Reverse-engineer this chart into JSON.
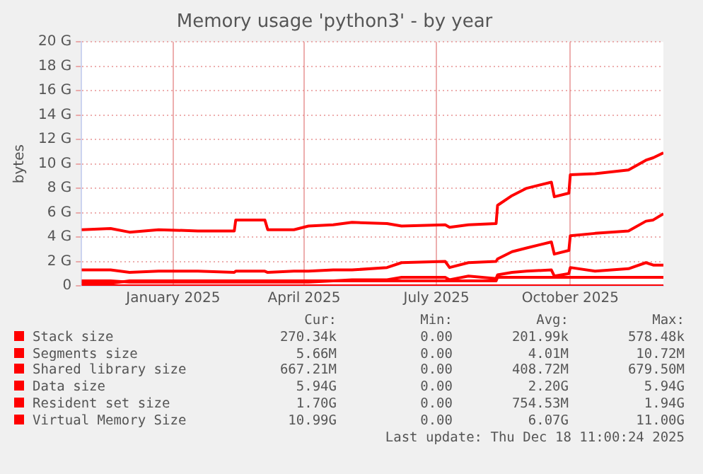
{
  "chart_data": {
    "type": "line",
    "title": "Memory usage 'python3' - by year",
    "ylabel": "bytes",
    "x": [
      "2024-11-13",
      "2024-12-03",
      "2024-12-16",
      "2025-01-05",
      "2025-02-01",
      "2025-02-26",
      "2025-02-27",
      "2025-03-19",
      "2025-03-21",
      "2025-04-08",
      "2025-04-18",
      "2025-05-05",
      "2025-05-18",
      "2025-06-11",
      "2025-06-21",
      "2025-07-21",
      "2025-07-24",
      "2025-08-06",
      "2025-08-25",
      "2025-08-26",
      "2025-09-05",
      "2025-09-15",
      "2025-10-02",
      "2025-10-04",
      "2025-10-14",
      "2025-10-15",
      "2025-11-01",
      "2025-11-24",
      "2025-12-06",
      "2025-12-11",
      "2025-12-18"
    ],
    "xlim": [
      "2024-11-13",
      "2025-12-18"
    ],
    "xticks": [
      {
        "value": "2025-01-15",
        "label": "January 2025"
      },
      {
        "value": "2025-04-15",
        "label": "April 2025"
      },
      {
        "value": "2025-07-15",
        "label": "July 2025"
      },
      {
        "value": "2025-10-15",
        "label": "October 2025"
      }
    ],
    "ylim": [
      0,
      20
    ],
    "yticks": [
      {
        "value": 0,
        "label": "0"
      },
      {
        "value": 2,
        "label": "2 G"
      },
      {
        "value": 4,
        "label": "4 G"
      },
      {
        "value": 6,
        "label": "6 G"
      },
      {
        "value": 8,
        "label": "8 G"
      },
      {
        "value": 10,
        "label": "10 G"
      },
      {
        "value": 12,
        "label": "12 G"
      },
      {
        "value": 14,
        "label": "14 G"
      },
      {
        "value": 16,
        "label": "16 G"
      },
      {
        "value": 18,
        "label": "18 G"
      },
      {
        "value": 20,
        "label": "20 G"
      }
    ],
    "grid": true,
    "legend": "bottom",
    "marker": "none",
    "line_style": "solid",
    "series": [
      {
        "name": "Stack size",
        "color": "#ff0000",
        "values": [
          0,
          0,
          0,
          0,
          0,
          0,
          0,
          0,
          0,
          0,
          0,
          0,
          0,
          0,
          0,
          0,
          0,
          0,
          0,
          0,
          0,
          0,
          0,
          0,
          0,
          0,
          0,
          0,
          0,
          0,
          0
        ]
      },
      {
        "name": "Segments size",
        "color": "#ff0000",
        "values": [
          null,
          null,
          null,
          null,
          null,
          null,
          null,
          null,
          null,
          null,
          null,
          null,
          null,
          null,
          null,
          null,
          null,
          null,
          null,
          null,
          null,
          null,
          null,
          null,
          null,
          null,
          null,
          null,
          null,
          null,
          null
        ]
      },
      {
        "name": "Shared library size",
        "color": "#ff0000",
        "values": [
          0.2,
          0.2,
          0.4,
          0.4,
          0.4,
          0.4,
          0.4,
          0.4,
          0.4,
          0.4,
          0.4,
          0.4,
          0.4,
          0.4,
          0.4,
          0.4,
          0.4,
          0.4,
          0.4,
          0.7,
          0.7,
          0.7,
          0.7,
          0.7,
          0.7,
          0.7,
          0.7,
          0.7,
          0.7,
          0.7,
          0.7
        ]
      },
      {
        "name": "Data size",
        "color": "#ff0000",
        "values": [
          1.3,
          1.3,
          1.1,
          1.2,
          1.2,
          1.1,
          1.2,
          1.2,
          1.1,
          1.2,
          1.2,
          1.3,
          1.3,
          1.5,
          1.9,
          2.0,
          1.5,
          1.9,
          2.0,
          2.2,
          2.8,
          3.1,
          3.6,
          2.6,
          2.9,
          4.1,
          4.3,
          4.5,
          5.3,
          5.4,
          5.9
        ]
      },
      {
        "name": "Resident set size",
        "color": "#ff0000",
        "values": [
          0.4,
          0.4,
          0.3,
          0.3,
          0.3,
          0.3,
          0.3,
          0.3,
          0.3,
          0.3,
          0.3,
          0.4,
          0.5,
          0.5,
          0.7,
          0.7,
          0.5,
          0.8,
          0.6,
          0.9,
          1.1,
          1.2,
          1.3,
          0.8,
          1.0,
          1.5,
          1.2,
          1.4,
          1.9,
          1.7,
          1.7
        ]
      },
      {
        "name": "Virtual Memory Size",
        "color": "#ff0000",
        "values": [
          4.6,
          4.7,
          4.4,
          4.6,
          4.5,
          4.5,
          5.4,
          5.4,
          4.6,
          4.6,
          4.9,
          5.0,
          5.2,
          5.1,
          4.9,
          5.0,
          4.8,
          5.0,
          5.1,
          6.6,
          7.4,
          8.0,
          8.5,
          7.3,
          7.6,
          9.1,
          9.2,
          9.5,
          10.3,
          10.5,
          10.9
        ]
      }
    ],
    "annotations": [
      "Cur:",
      "Min:",
      "Avg:",
      "Max:",
      "270.34k",
      "0.00",
      "201.99k",
      "578.48k",
      "5.66M",
      "0.00",
      "4.01M",
      "10.72M",
      "667.21M",
      "0.00",
      "408.72M",
      "679.50M",
      "5.94G",
      "0.00",
      "2.20G",
      "5.94G",
      "1.70G",
      "0.00",
      "754.53M",
      "1.94G",
      "10.99G",
      "0.00",
      "6.07G",
      "11.00G",
      "Last update: Thu Dec 18 11:00:24 2025"
    ]
  }
}
